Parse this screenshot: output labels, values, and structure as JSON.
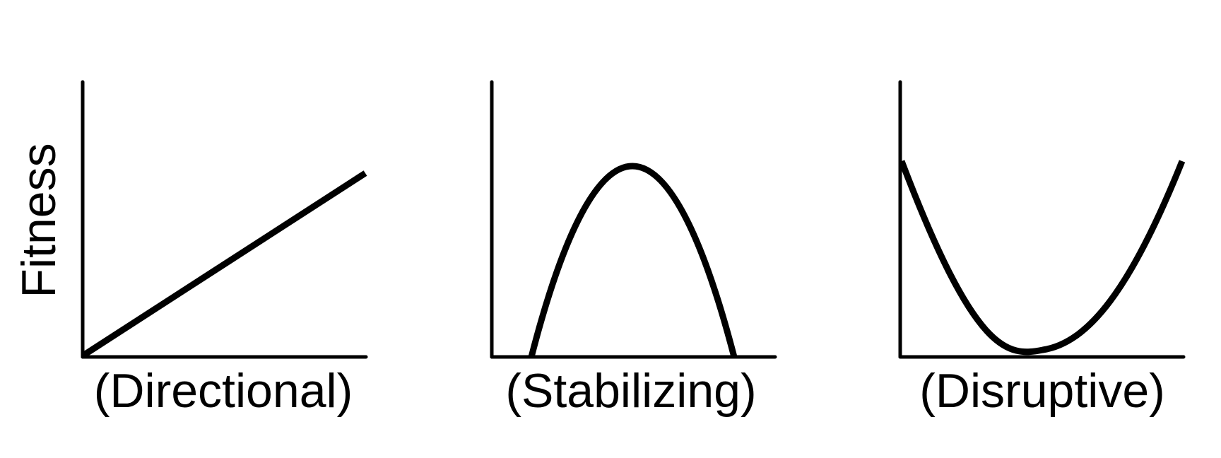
{
  "y_axis_label": "Fitness",
  "panels": [
    {
      "id": "directional",
      "label": "(Directional)",
      "shape": "line"
    },
    {
      "id": "stabilizing",
      "label": "(Stabilizing)",
      "shape": "hump"
    },
    {
      "id": "disruptive",
      "label": "(Disruptive)",
      "shape": "valley"
    }
  ],
  "colors": {
    "background": "#ffffff",
    "line": "#000000"
  }
}
